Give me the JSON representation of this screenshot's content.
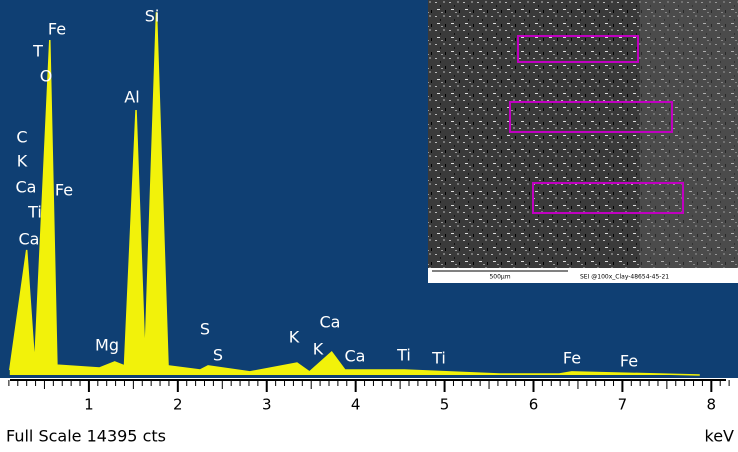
{
  "chart_data": {
    "type": "spectrum",
    "footer": "Full Scale 14395 cts",
    "x_unit": "keV",
    "xlim": [
      0,
      8.3
    ],
    "ylim": [
      0,
      14395
    ],
    "xticks": [
      1,
      2,
      3,
      4,
      5,
      6,
      7,
      8
    ],
    "color": "#f2f20a",
    "background": "#0f3f73",
    "x": [
      0.11,
      0.3,
      0.39,
      0.56,
      0.64,
      1.12,
      1.29,
      1.4,
      1.53,
      1.63,
      1.76,
      1.89,
      2.25,
      2.34,
      2.81,
      3.34,
      3.48,
      3.73,
      3.88,
      4.55,
      5.62,
      6.29,
      6.43,
      7.87
    ],
    "values": [
      190,
      4800,
      380,
      12860,
      380,
      270,
      500,
      350,
      10170,
      580,
      13930,
      350,
      190,
      350,
      120,
      460,
      120,
      880,
      190,
      190,
      40,
      40,
      120,
      0
    ],
    "annotations": [
      "Fe",
      "Si",
      "T",
      "O",
      "Al",
      "C",
      "K",
      "Ca",
      "Fe",
      "Ti",
      "Ca",
      "Mg",
      "S",
      "S",
      "K",
      "Ca",
      "K",
      "Ca",
      "Ti",
      "Ti",
      "Fe",
      "Fe"
    ],
    "inset": {
      "scale_label": "500µm",
      "caption": "SEI @100x_Clay-48654-45-21"
    }
  }
}
